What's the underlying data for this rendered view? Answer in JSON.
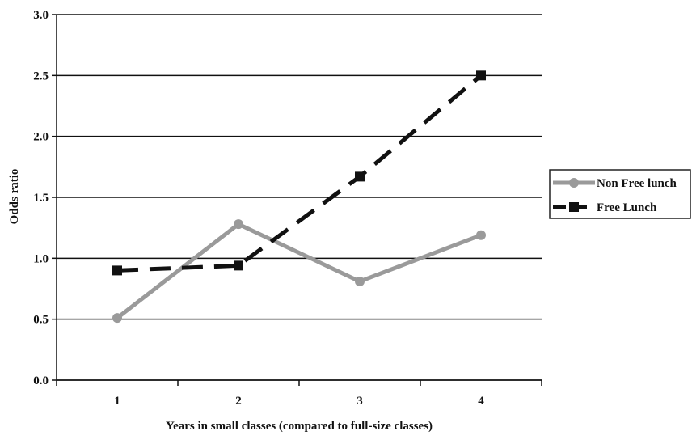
{
  "chart_data": {
    "type": "line",
    "title": "",
    "xlabel": "Years in small classes (compared to full-size classes)",
    "ylabel": "Odds ratio",
    "categories": [
      "1",
      "2",
      "3",
      "4"
    ],
    "ylim": [
      0.0,
      3.0
    ],
    "yticks": [
      "0.0",
      "0.5",
      "1.0",
      "1.5",
      "2.0",
      "2.5",
      "3.0"
    ],
    "grid": true,
    "legend_position": "right",
    "series": [
      {
        "name": "Non Free lunch",
        "values": [
          0.51,
          1.28,
          0.81,
          1.19
        ],
        "color": "#9a9a9a",
        "line_style": "solid",
        "marker": "circle"
      },
      {
        "name": "Free Lunch",
        "values": [
          0.9,
          0.94,
          1.67,
          2.5
        ],
        "color": "#111111",
        "line_style": "dashed",
        "marker": "square"
      }
    ]
  }
}
